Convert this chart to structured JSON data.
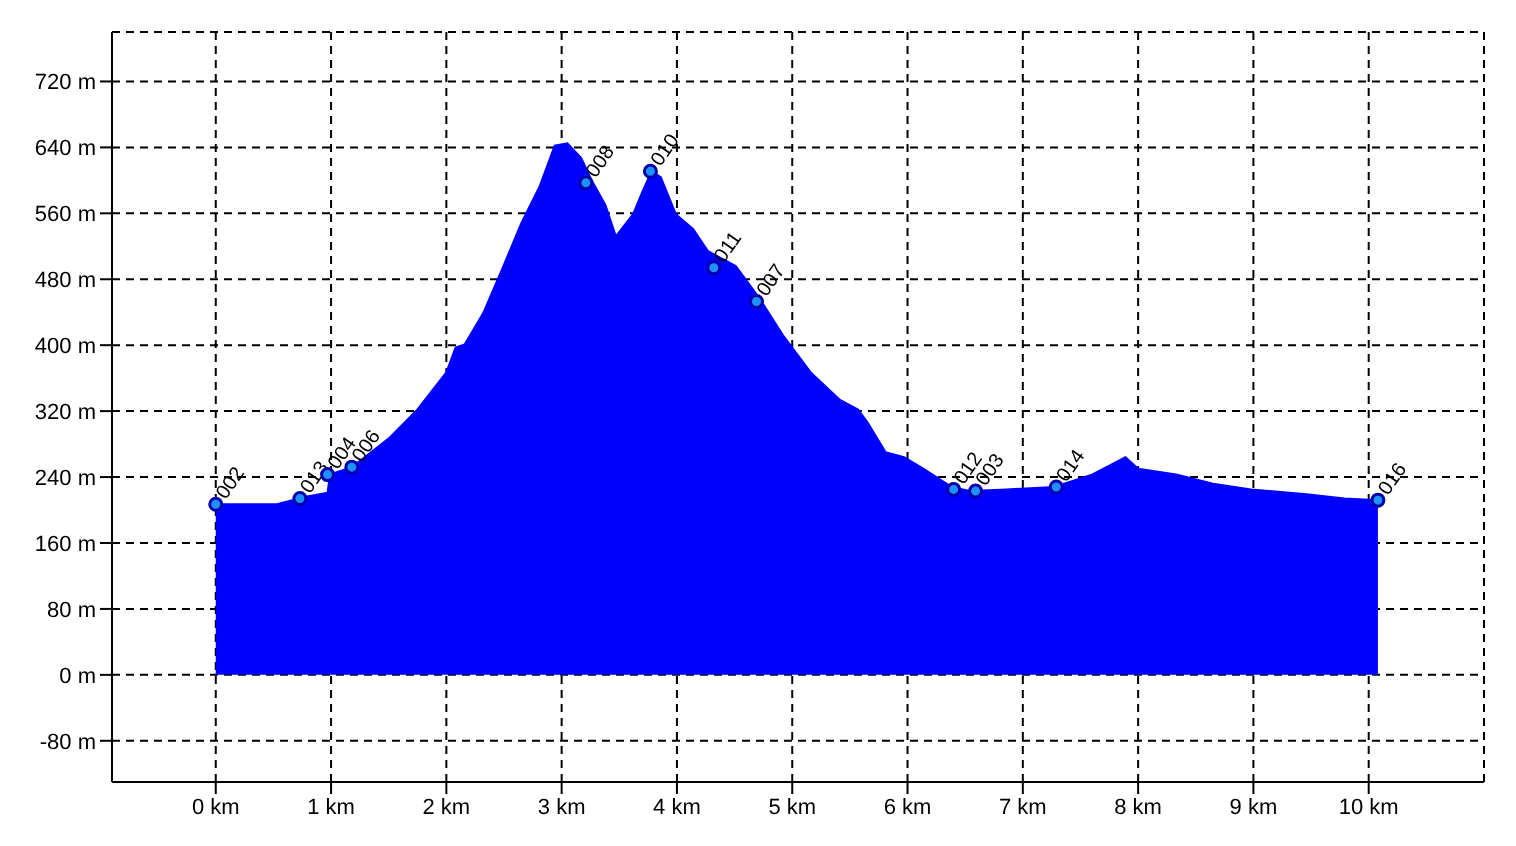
{
  "chart_data": {
    "type": "area",
    "x": [
      0,
      0.53,
      0.78,
      0.97,
      0.99,
      1.18,
      1.51,
      1.75,
      2.0,
      2.08,
      2.16,
      2.32,
      2.48,
      2.65,
      2.81,
      2.94,
      3.05,
      3.17,
      3.26,
      3.38,
      3.47,
      3.62,
      3.7,
      3.78,
      3.86,
      3.99,
      4.14,
      4.27,
      4.51,
      4.71,
      4.92,
      5.16,
      5.41,
      5.57,
      5.65,
      5.81,
      5.97,
      6.14,
      6.38,
      6.54,
      6.86,
      7.27,
      7.6,
      7.89,
      8.0,
      8.33,
      8.65,
      8.98,
      9.46,
      9.79,
      10.08
    ],
    "series": [
      {
        "color": "#0000ff",
        "values": [
          207,
          207,
          216,
          221,
          243,
          252,
          288,
          322,
          367,
          397,
          401,
          439,
          491,
          548,
          593,
          642,
          645,
          627,
          600,
          570,
          532,
          559,
          586,
          611,
          604,
          559,
          541,
          514,
          496,
          458,
          412,
          367,
          334,
          322,
          307,
          270,
          264,
          250,
          228,
          223,
          225,
          228,
          243,
          264,
          250,
          243,
          232,
          225,
          219,
          214,
          212
        ]
      }
    ],
    "annotations": [
      {
        "text": "002",
        "x": 0,
        "y": 207
      },
      {
        "text": "013",
        "x": 0.73,
        "y": 214
      },
      {
        "text": "004",
        "x": 0.97,
        "y": 243
      },
      {
        "text": "006",
        "x": 1.18,
        "y": 252
      },
      {
        "text": "008",
        "x": 3.21,
        "y": 597
      },
      {
        "text": "010",
        "x": 3.77,
        "y": 611
      },
      {
        "text": "011",
        "x": 4.32,
        "y": 494
      },
      {
        "text": "007",
        "x": 4.69,
        "y": 453
      },
      {
        "text": "012",
        "x": 6.4,
        "y": 225
      },
      {
        "text": "003",
        "x": 6.59,
        "y": 223
      },
      {
        "text": "014",
        "x": 7.29,
        "y": 228
      },
      {
        "text": "016",
        "x": 10.08,
        "y": 212
      }
    ],
    "xlim": [
      -0.9,
      11
    ],
    "xticks": [
      {
        "value": 0,
        "label": "0 km"
      },
      {
        "value": 1,
        "label": "1 km"
      },
      {
        "value": 2,
        "label": "2 km"
      },
      {
        "value": 3,
        "label": "3 km"
      },
      {
        "value": 4,
        "label": "4 km"
      },
      {
        "value": 5,
        "label": "5 km"
      },
      {
        "value": 6,
        "label": "6 km"
      },
      {
        "value": 7,
        "label": "7 km"
      },
      {
        "value": 8,
        "label": "8 km"
      },
      {
        "value": 9,
        "label": "9 km"
      },
      {
        "value": 10,
        "label": "10 km"
      }
    ],
    "ylim": [
      -130,
      780
    ],
    "yticks": [
      {
        "value": -80,
        "label": "-80 m"
      },
      {
        "value": 0,
        "label": "0 m"
      },
      {
        "value": 80,
        "label": "80 m"
      },
      {
        "value": 160,
        "label": "160 m"
      },
      {
        "value": 240,
        "label": "240 m"
      },
      {
        "value": 320,
        "label": "320 m"
      },
      {
        "value": 400,
        "label": "400 m"
      },
      {
        "value": 480,
        "label": "480 m"
      },
      {
        "value": 560,
        "label": "560 m"
      },
      {
        "value": 640,
        "label": "640 m"
      },
      {
        "value": 720,
        "label": "720 m"
      }
    ],
    "grid": true
  }
}
